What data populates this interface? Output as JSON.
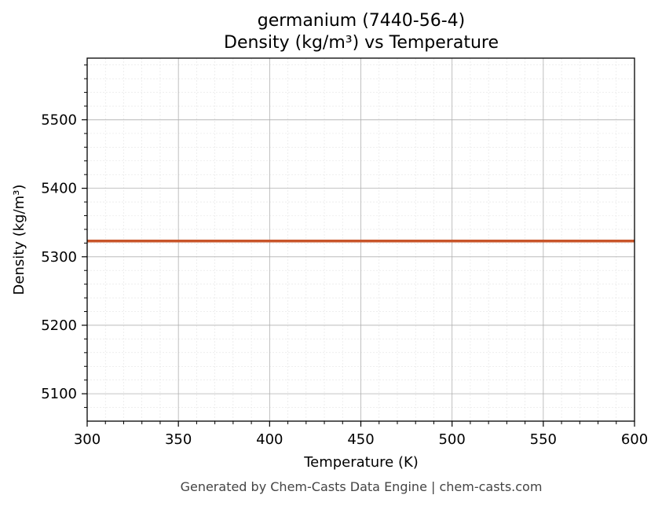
{
  "chart_data": {
    "type": "line",
    "title_line1": "germanium (7440-56-4)",
    "title_line2": "Density (kg/m³) vs Temperature",
    "xlabel": "Temperature (K)",
    "ylabel": "Density (kg/m³)",
    "xlim": [
      300,
      600
    ],
    "ylim": [
      5060,
      5590
    ],
    "xticks": [
      300,
      350,
      400,
      450,
      500,
      550,
      600
    ],
    "yticks": [
      5100,
      5200,
      5300,
      5400,
      5500
    ],
    "grid": true,
    "series": [
      {
        "color": "#c8552a",
        "x": [
          300,
          600
        ],
        "y": [
          5323,
          5323
        ]
      }
    ]
  },
  "footer": "Generated by Chem-Casts Data Engine | chem-casts.com"
}
